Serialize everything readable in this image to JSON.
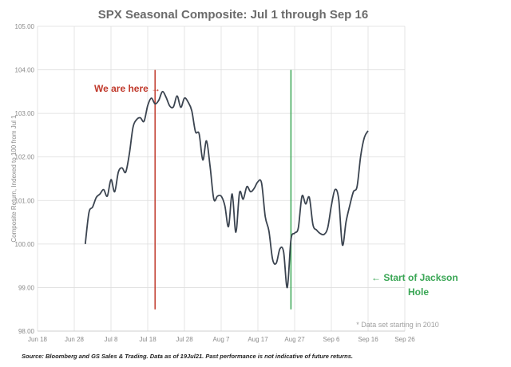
{
  "chart_data": {
    "type": "line",
    "title": "SPX Seasonal Composite: Jul 1 through Sep 16",
    "ylabel": "Composite Return, Indexed to 100 from Jul 1",
    "xlabel": "",
    "ylim": [
      98,
      105
    ],
    "xlim": [
      "Jun 18",
      "Sep 26"
    ],
    "grid": true,
    "yticks": [
      "98.00",
      "99.00",
      "100.00",
      "101.00",
      "102.00",
      "103.00",
      "104.00",
      "105.00"
    ],
    "xticks": [
      "Jun 18",
      "Jun 28",
      "Jul 8",
      "Jul 18",
      "Jul 28",
      "Aug 7",
      "Aug 17",
      "Aug 27",
      "Sep 6",
      "Sep 16",
      "Sep 26"
    ],
    "line_color": "#3b4450",
    "series": [
      {
        "start": "Jul 1",
        "end": "Sep 16",
        "values": [
          100.0,
          100.72,
          100.85,
          101.07,
          101.15,
          101.25,
          101.1,
          101.48,
          101.2,
          101.65,
          101.75,
          101.65,
          102.07,
          102.68,
          102.86,
          102.9,
          102.82,
          103.18,
          103.35,
          103.22,
          103.3,
          103.5,
          103.37,
          103.17,
          103.15,
          103.4,
          103.14,
          103.35,
          103.26,
          103.06,
          102.58,
          102.53,
          101.93,
          102.37,
          101.77,
          101.03,
          101.1,
          101.1,
          100.88,
          100.4,
          101.15,
          100.27,
          101.18,
          101.03,
          101.32,
          101.2,
          101.28,
          101.43,
          101.4,
          100.63,
          100.3,
          99.65,
          99.56,
          99.89,
          99.82,
          99.0,
          100.1,
          100.25,
          100.37,
          101.1,
          100.92,
          101.07,
          100.44,
          100.32,
          100.24,
          100.22,
          100.37,
          100.88,
          101.25,
          101.03,
          99.98,
          100.51,
          100.88,
          101.2,
          101.32,
          102.03,
          102.45,
          102.6
        ]
      }
    ],
    "markers": [
      {
        "date": "Jul 20",
        "from": 98.5,
        "to": 104,
        "color": "#c0392b"
      },
      {
        "date": "Aug 26",
        "from": 98.5,
        "to": 104,
        "color": "#3aa655"
      }
    ],
    "annotations": {
      "we_are_here": "We are here →",
      "jackson_line1": "← Start of Jackson",
      "jackson_line2": "Hole",
      "data_note": "* Data set starting in 2010"
    }
  },
  "footer": {
    "source": "Source: Bloomberg and GS Sales & Trading. Data as of 19Jul21. Past performance is not indicative of future returns."
  }
}
